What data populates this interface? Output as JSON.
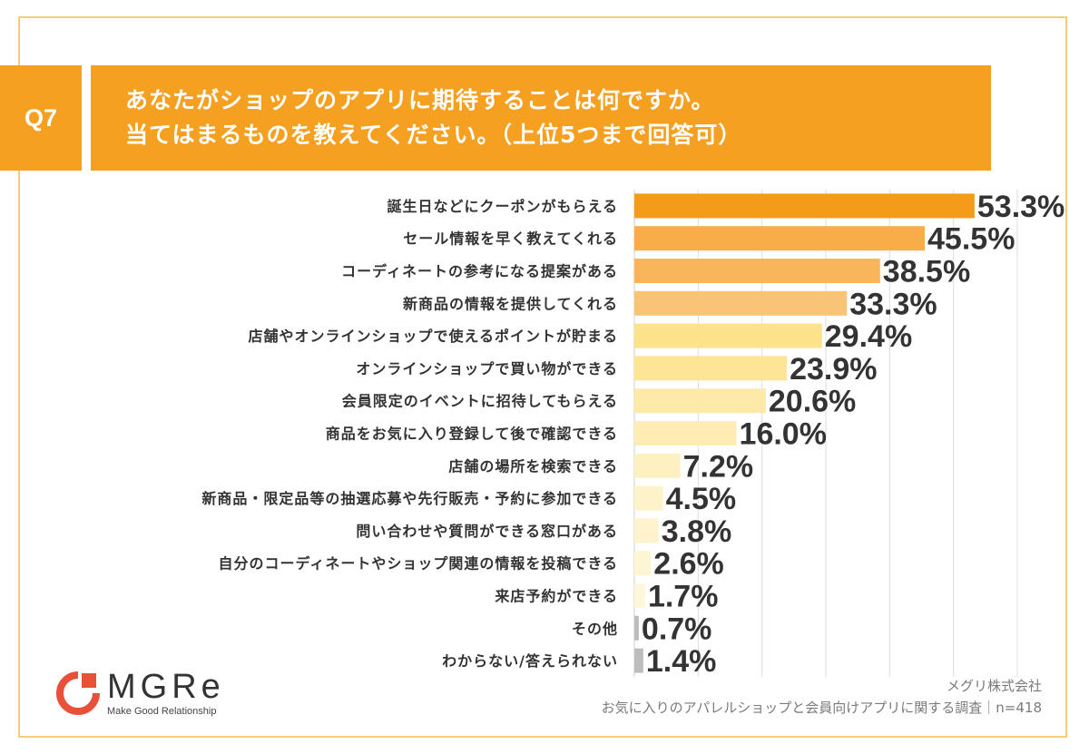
{
  "question": {
    "label": "Q7",
    "line1": "あなたがショップのアプリに期待することは何ですか。",
    "line2": "当てはまるものを教えてください。（上位5つまで回答可）"
  },
  "chart_data": {
    "type": "bar",
    "orientation": "horizontal",
    "categories": [
      "誕生日などにクーポンがもらえる",
      "セール情報を早く教えてくれる",
      "コーディネートの参考になる提案がある",
      "新商品の情報を提供してくれる",
      "店舗やオンラインショップで使えるポイントが貯まる",
      "オンラインショップで買い物ができる",
      "会員限定のイベントに招待してもらえる",
      "商品をお気に入り登録して後で確認できる",
      "店舗の場所を検索できる",
      "新商品・限定品等の抽選応募や先行販売・予約に参加できる",
      "問い合わせや質問ができる窓口がある",
      "自分のコーディネートやショップ関連の情報を投稿できる",
      "来店予約ができる",
      "その他",
      "わからない/答えられない"
    ],
    "values": [
      53.3,
      45.5,
      38.5,
      33.3,
      29.4,
      23.9,
      20.6,
      16.0,
      7.2,
      4.5,
      3.8,
      2.6,
      1.7,
      0.7,
      1.4
    ],
    "value_labels": [
      "53.3%",
      "45.5%",
      "38.5%",
      "33.3%",
      "29.4%",
      "23.9%",
      "20.6%",
      "16.0%",
      "7.2%",
      "4.5%",
      "3.8%",
      "2.6%",
      "1.7%",
      "0.7%",
      "1.4%"
    ],
    "colors": [
      "#f59b1a",
      "#f8ad48",
      "#f9b55a",
      "#fac478",
      "#fde28c",
      "#fde497",
      "#fde9a8",
      "#fdecb4",
      "#fef0c0",
      "#fef2c8",
      "#fef3cc",
      "#fef5d4",
      "#fef7dc",
      "#bdbdbd",
      "#bdbdbd"
    ],
    "xlim": [
      0,
      60
    ],
    "gridlines": [
      10,
      20,
      30,
      40,
      50,
      60
    ],
    "grid": true
  },
  "logo": {
    "name": "MGRe",
    "tagline": "Make Good Relationship"
  },
  "source": {
    "company": "メグリ株式会社",
    "survey": "お気に入りのアパレルショップと会員向けアプリに関する調査｜n=418"
  }
}
